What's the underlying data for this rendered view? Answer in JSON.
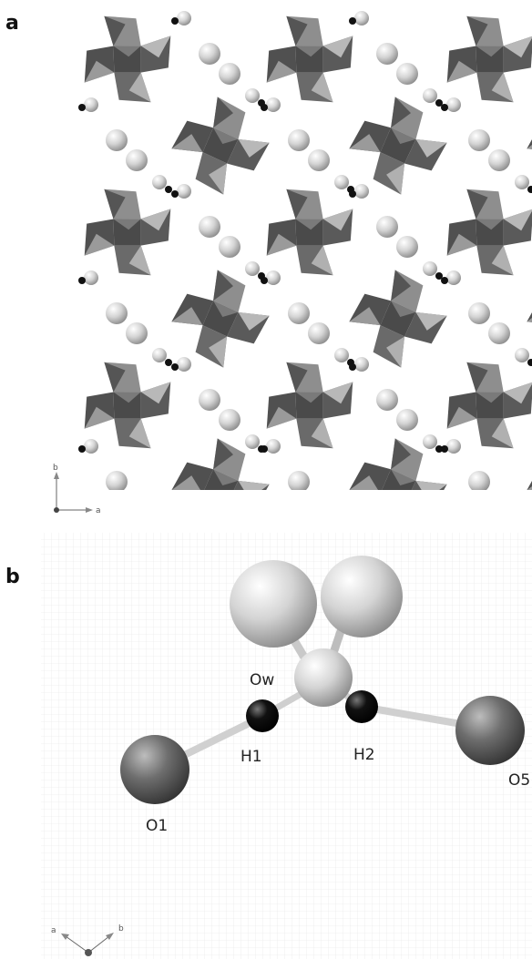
{
  "panels": [
    {
      "label": "a",
      "axes": {
        "vertical": "b",
        "horizontal": "a"
      }
    },
    {
      "label": "b",
      "atoms": [
        "Ow",
        "H1",
        "H2",
        "O1",
        "O5"
      ],
      "axes": {
        "left": "a",
        "right": "b"
      }
    }
  ]
}
